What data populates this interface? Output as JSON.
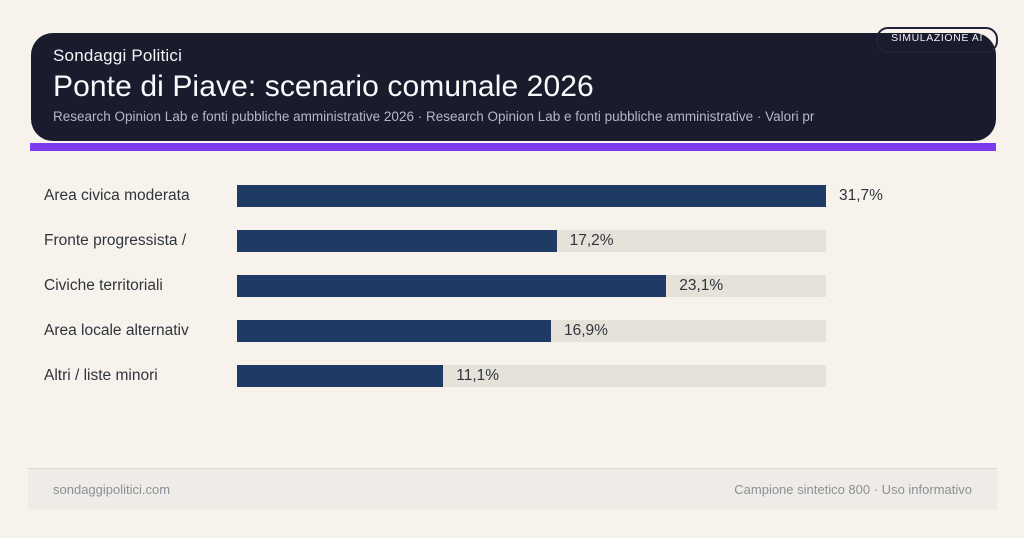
{
  "header": {
    "badge": "SIMULAZIONE AI",
    "brand": "Sondaggi Politici",
    "title": "Ponte di Piave: scenario comunale 2026",
    "subtitle": "Research Opinion Lab e fonti pubbliche amministrative 2026 · Research Opinion Lab e fonti pubbliche amministrative · Valori pr"
  },
  "chart_data": {
    "type": "bar",
    "orientation": "horizontal",
    "categories": [
      "Area civica moderata",
      "Fronte progressista /",
      "Civiche territoriali",
      "Area locale alternativ",
      "Altri / liste minori"
    ],
    "values": [
      31.7,
      17.2,
      23.1,
      16.9,
      11.1
    ],
    "value_labels": [
      "31,7%",
      "17,2%",
      "23,1%",
      "16,9%",
      "11,1%"
    ],
    "xlim": [
      0,
      31.7
    ],
    "grid": false,
    "legend": "none",
    "bar_color": "#1f3a64",
    "track_color": "#e6e2da"
  },
  "footer": {
    "left": "sondaggipolitici.com",
    "right": "Campione sintetico 800 · Uso informativo"
  },
  "colors": {
    "page_background": "#f7f2eb",
    "card_background": "#1a1b2d",
    "accent_purple": "#7c3bec",
    "bar_navy": "#1f3a64",
    "bar_track": "#e6e2da",
    "label_text": "#2f353e",
    "subtitle_text": "#b5b8c6",
    "footer_text": "#8b9097"
  }
}
